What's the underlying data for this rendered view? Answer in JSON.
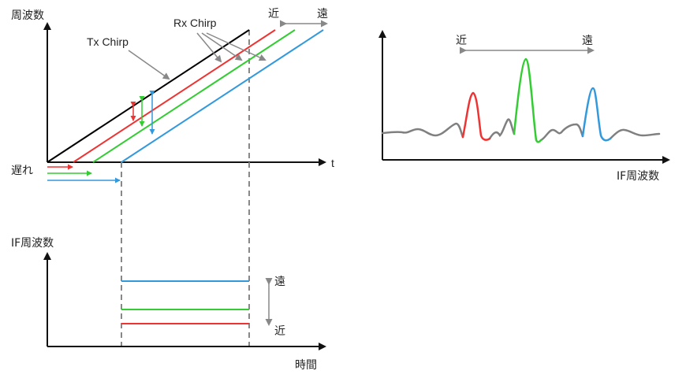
{
  "colors": {
    "tx": "#000000",
    "near": "#ee3333",
    "mid": "#33cc33",
    "far": "#3399dd",
    "axis": "#111111",
    "guide": "#888888",
    "spectrum": "#808080"
  },
  "top_chart": {
    "ylabel": "周波数",
    "xlabel": "t",
    "tx_label": "Tx Chirp",
    "rx_label": "Rx Chirp",
    "near_label": "近",
    "far_label": "遠",
    "delay_label": "遅れ"
  },
  "bottom_chart": {
    "ylabel": "IF周波数",
    "xlabel": "時間",
    "far_label": "遠",
    "near_label": "近"
  },
  "spectrum_chart": {
    "xlabel": "IF周波数",
    "near_label": "近",
    "far_label": "遠"
  }
}
